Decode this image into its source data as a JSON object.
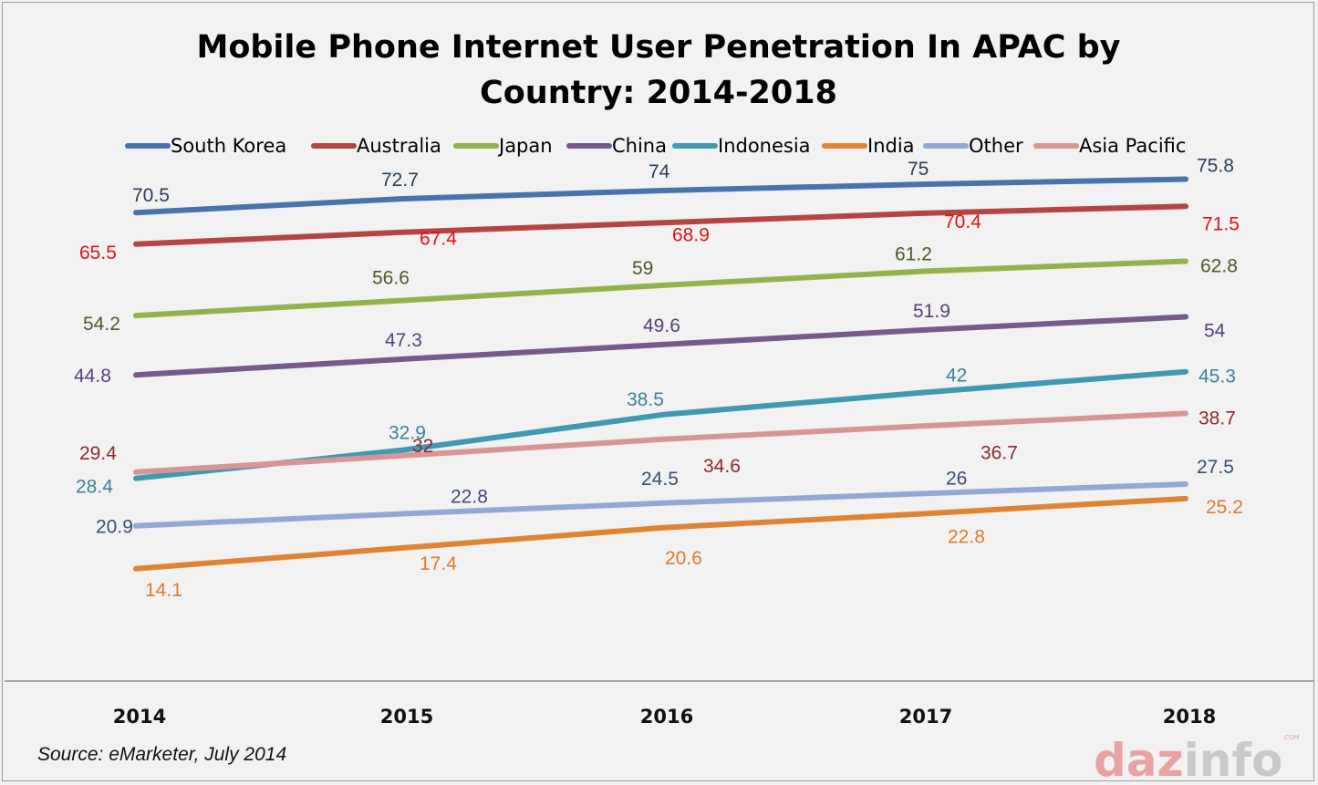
{
  "chart_data": {
    "type": "line",
    "title_lines": [
      "Mobile Phone Internet User Penetration In APAC by",
      "Country: 2014-2018"
    ],
    "categories": [
      "2014",
      "2015",
      "2016",
      "2017",
      "2018"
    ],
    "ylim": [
      0,
      90
    ],
    "grid": false,
    "legend_position": "top",
    "series": [
      {
        "name": "South Korea",
        "color": "#4a72ad",
        "label_color": "#2c3f58",
        "values": [
          70.5,
          72.7,
          74,
          75,
          75.8
        ]
      },
      {
        "name": "Australia",
        "color": "#b54443",
        "label_color": "#e3111a",
        "values": [
          65.5,
          67.4,
          68.9,
          70.4,
          71.5
        ]
      },
      {
        "name": "Japan",
        "color": "#93b34a",
        "label_color": "#4c5a2c",
        "values": [
          54.2,
          56.6,
          59,
          61.2,
          62.8
        ]
      },
      {
        "name": "China",
        "color": "#76598d",
        "label_color": "#56407a",
        "values": [
          44.8,
          47.3,
          49.6,
          51.9,
          54
        ]
      },
      {
        "name": "Indonesia",
        "color": "#3f9ab1",
        "label_color": "#3b8197",
        "values": [
          28.4,
          32.9,
          38.5,
          42,
          45.3
        ]
      },
      {
        "name": "India",
        "color": "#e08434",
        "label_color": "#e07a2c",
        "values": [
          14.1,
          17.4,
          20.6,
          22.8,
          25.2
        ]
      },
      {
        "name": "Other",
        "color": "#93a9d3",
        "label_color": "#3b4f72",
        "values": [
          20.9,
          22.8,
          24.5,
          26,
          27.5
        ]
      },
      {
        "name": "Asia Pacific",
        "color": "#d89595",
        "label_color": "#8a2a2d",
        "values": [
          29.4,
          32,
          34.6,
          36.7,
          38.7
        ]
      }
    ]
  },
  "source": "Source: eMarketer, July 2014",
  "logo": {
    "part1": "daz",
    "part2": "info",
    "suffix": ".COM"
  }
}
